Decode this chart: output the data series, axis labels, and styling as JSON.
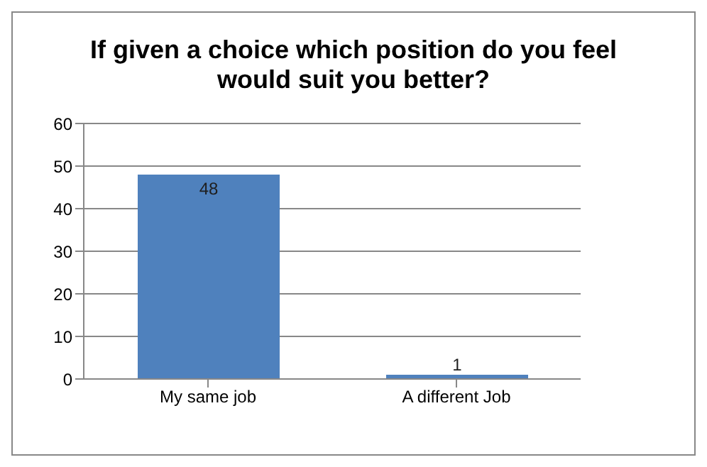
{
  "chart_data": {
    "type": "bar",
    "title": "If given a choice which position do you feel would suit you better?",
    "categories": [
      "My same job",
      "A different Job"
    ],
    "values": [
      48,
      1
    ],
    "color": "#4f81bd",
    "ylim": [
      0,
      60
    ],
    "yticks": [
      0,
      10,
      20,
      30,
      40,
      50,
      60
    ],
    "grid": "y",
    "data_labels": true
  }
}
